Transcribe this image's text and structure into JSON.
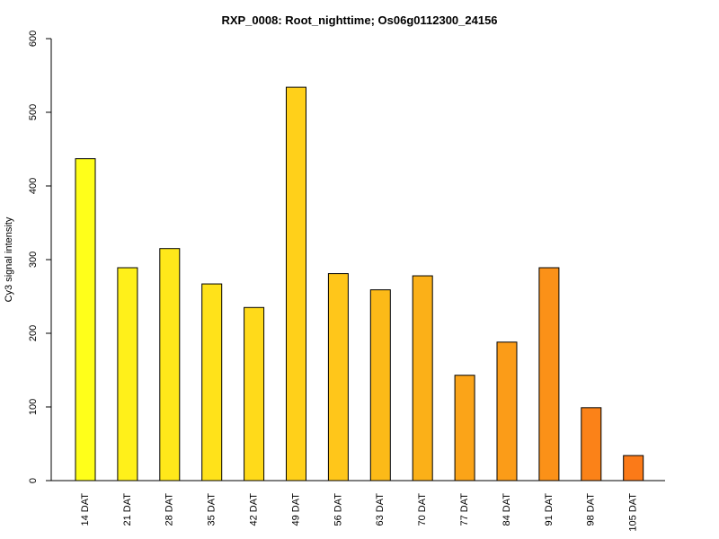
{
  "chart_data": {
    "type": "bar",
    "title": "RXP_0008: Root_nighttime; Os06g0112300_24156",
    "xlabel": "",
    "ylabel": "Cy3 signal intensity",
    "ylim": [
      0,
      600
    ],
    "yticks": [
      0,
      100,
      200,
      300,
      400,
      500,
      600
    ],
    "categories": [
      "14 DAT",
      "21 DAT",
      "28 DAT",
      "35 DAT",
      "42 DAT",
      "49 DAT",
      "56 DAT",
      "63 DAT",
      "70 DAT",
      "77 DAT",
      "84 DAT",
      "91 DAT",
      "98 DAT",
      "105 DAT"
    ],
    "values": [
      437,
      289,
      315,
      267,
      235,
      534,
      281,
      259,
      278,
      143,
      188,
      289,
      99,
      34
    ],
    "colors": [
      "#FFFF1A",
      "#FFF01A",
      "#FFE81A",
      "#FFE21A",
      "#FFDA1A",
      "#FFD01A",
      "#FFC61A",
      "#FCBA18",
      "#FBB018",
      "#FBA418",
      "#FB9C18",
      "#FB9118",
      "#FB8218",
      "#FB7A18"
    ],
    "grid": false,
    "legend": "none"
  }
}
